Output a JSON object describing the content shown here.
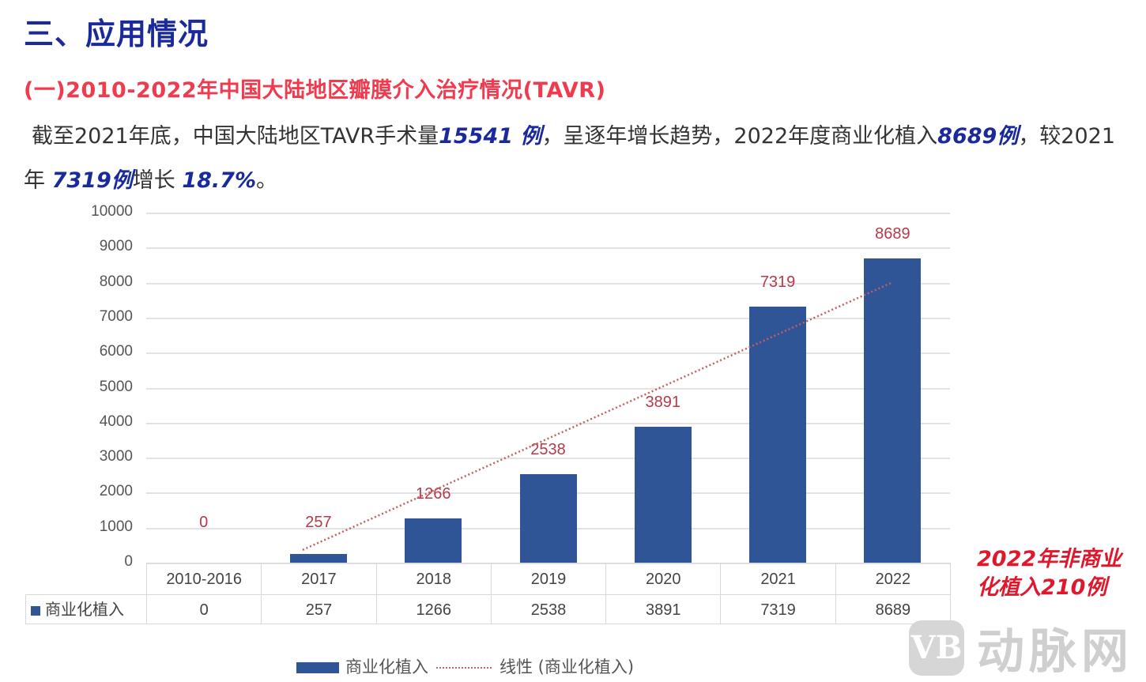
{
  "section_title": "三、应用情况",
  "subsection_title": "(一)2010-2022年中国大陆地区瓣膜介入治疗情况(TAVR)",
  "paragraph": {
    "p1": "截至2021年底，中国大陆地区TAVR手术量",
    "h1": "15541 例",
    "p2": "，呈逐年增长趋势，2022年度商业化植入",
    "h2": "8689例",
    "p3": "，较2021年 ",
    "h3": "7319例",
    "p4": "增长 ",
    "h4": "18.7%",
    "p5": "。"
  },
  "annotation": "2022年非商业化植入210例",
  "watermark": {
    "logo": "VB",
    "text": "动脉网"
  },
  "colors": {
    "title": "#1a2a9c",
    "subtitle": "#f03a4e",
    "bar": "#2f5597",
    "data_label": "#b53a4a",
    "annotation": "#e0182d"
  },
  "chart_data": {
    "type": "bar",
    "title": "",
    "xlabel": "",
    "ylabel": "",
    "categories": [
      "2010-2016",
      "2017",
      "2018",
      "2019",
      "2020",
      "2021",
      "2022"
    ],
    "series": [
      {
        "name": "商业化植入",
        "values": [
          0,
          257,
          1266,
          2538,
          3891,
          7319,
          8689
        ]
      }
    ],
    "trendline": {
      "name": "线性 (商业化植入)",
      "type": "linear",
      "style": "dotted"
    },
    "ylim": [
      0,
      10000
    ],
    "yticks": [
      "0",
      "1000",
      "2000",
      "3000",
      "4000",
      "5000",
      "6000",
      "7000",
      "8000",
      "9000",
      "10000"
    ],
    "grid": true,
    "data_table": true,
    "legend": {
      "position": "bottom",
      "entries": [
        "商业化植入",
        "线性 (商业化植入)"
      ]
    },
    "table_row_label": "商业化植入"
  }
}
